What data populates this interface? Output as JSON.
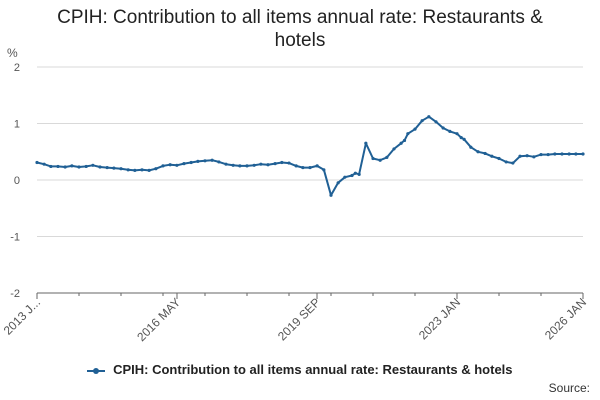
{
  "title_lines": [
    "CPIH: Contribution to all items annual rate: Restaurants &",
    "hotels"
  ],
  "source_label": "Source:",
  "colors": {
    "series": "#206095",
    "grid": "#d9d9d9",
    "axis": "#666666"
  },
  "chart_data": {
    "type": "line",
    "title": "CPIH: Contribution to all items annual rate: Restaurants & hotels",
    "ylabel": "%",
    "ylim": [
      -2,
      2
    ],
    "yticks": [
      2,
      1,
      0,
      -1,
      -2
    ],
    "ytick_labels": [
      "2",
      "1",
      "0",
      "-1",
      "-2"
    ],
    "x_range": [
      2013.0,
      2026.0
    ],
    "xticks": [
      2013.0,
      2016.333,
      2019.667,
      2023.0,
      2026.0
    ],
    "xtick_labels": [
      "2013 J...",
      "2016 MAY",
      "2019 SEP",
      "2023 JAN",
      "2026 JAN"
    ],
    "series": [
      {
        "name": "CPIH: Contribution to all items annual rate: Restaurants & hotels",
        "x": [
          2013.0,
          2013.17,
          2013.33,
          2013.5,
          2013.67,
          2013.83,
          2014.0,
          2014.17,
          2014.33,
          2014.5,
          2014.67,
          2014.83,
          2015.0,
          2015.17,
          2015.33,
          2015.5,
          2015.67,
          2015.83,
          2016.0,
          2016.17,
          2016.33,
          2016.5,
          2016.67,
          2016.83,
          2017.0,
          2017.17,
          2017.33,
          2017.5,
          2017.67,
          2017.83,
          2018.0,
          2018.17,
          2018.33,
          2018.5,
          2018.67,
          2018.83,
          2019.0,
          2019.17,
          2019.33,
          2019.5,
          2019.67,
          2019.83,
          2020.0,
          2020.17,
          2020.33,
          2020.5,
          2020.58,
          2020.67,
          2020.83,
          2021.0,
          2021.17,
          2021.33,
          2021.5,
          2021.67,
          2021.75,
          2021.83,
          2022.0,
          2022.17,
          2022.33,
          2022.5,
          2022.67,
          2022.83,
          2023.0,
          2023.1,
          2023.17,
          2023.33,
          2023.5,
          2023.67,
          2023.83,
          2024.0,
          2024.17,
          2024.33,
          2024.5,
          2024.67,
          2024.83,
          2025.0,
          2025.17,
          2025.33,
          2025.5,
          2025.67,
          2025.83,
          2026.0
        ],
        "values": [
          0.31,
          0.28,
          0.24,
          0.24,
          0.23,
          0.25,
          0.23,
          0.24,
          0.26,
          0.23,
          0.22,
          0.21,
          0.2,
          0.18,
          0.17,
          0.18,
          0.17,
          0.2,
          0.25,
          0.27,
          0.26,
          0.29,
          0.31,
          0.33,
          0.34,
          0.35,
          0.32,
          0.28,
          0.26,
          0.25,
          0.25,
          0.26,
          0.28,
          0.27,
          0.29,
          0.31,
          0.3,
          0.25,
          0.22,
          0.22,
          0.25,
          0.18,
          -0.27,
          -0.05,
          0.05,
          0.08,
          0.12,
          0.1,
          0.65,
          0.38,
          0.35,
          0.4,
          0.55,
          0.65,
          0.7,
          0.82,
          0.9,
          1.05,
          1.12,
          1.03,
          0.92,
          0.86,
          0.82,
          0.75,
          0.72,
          0.58,
          0.5,
          0.47,
          0.42,
          0.38,
          0.32,
          0.3,
          0.42,
          0.43,
          0.41,
          0.45,
          0.45,
          0.46,
          0.46,
          0.46,
          0.46,
          0.46
        ]
      }
    ],
    "legend": "bottom"
  }
}
